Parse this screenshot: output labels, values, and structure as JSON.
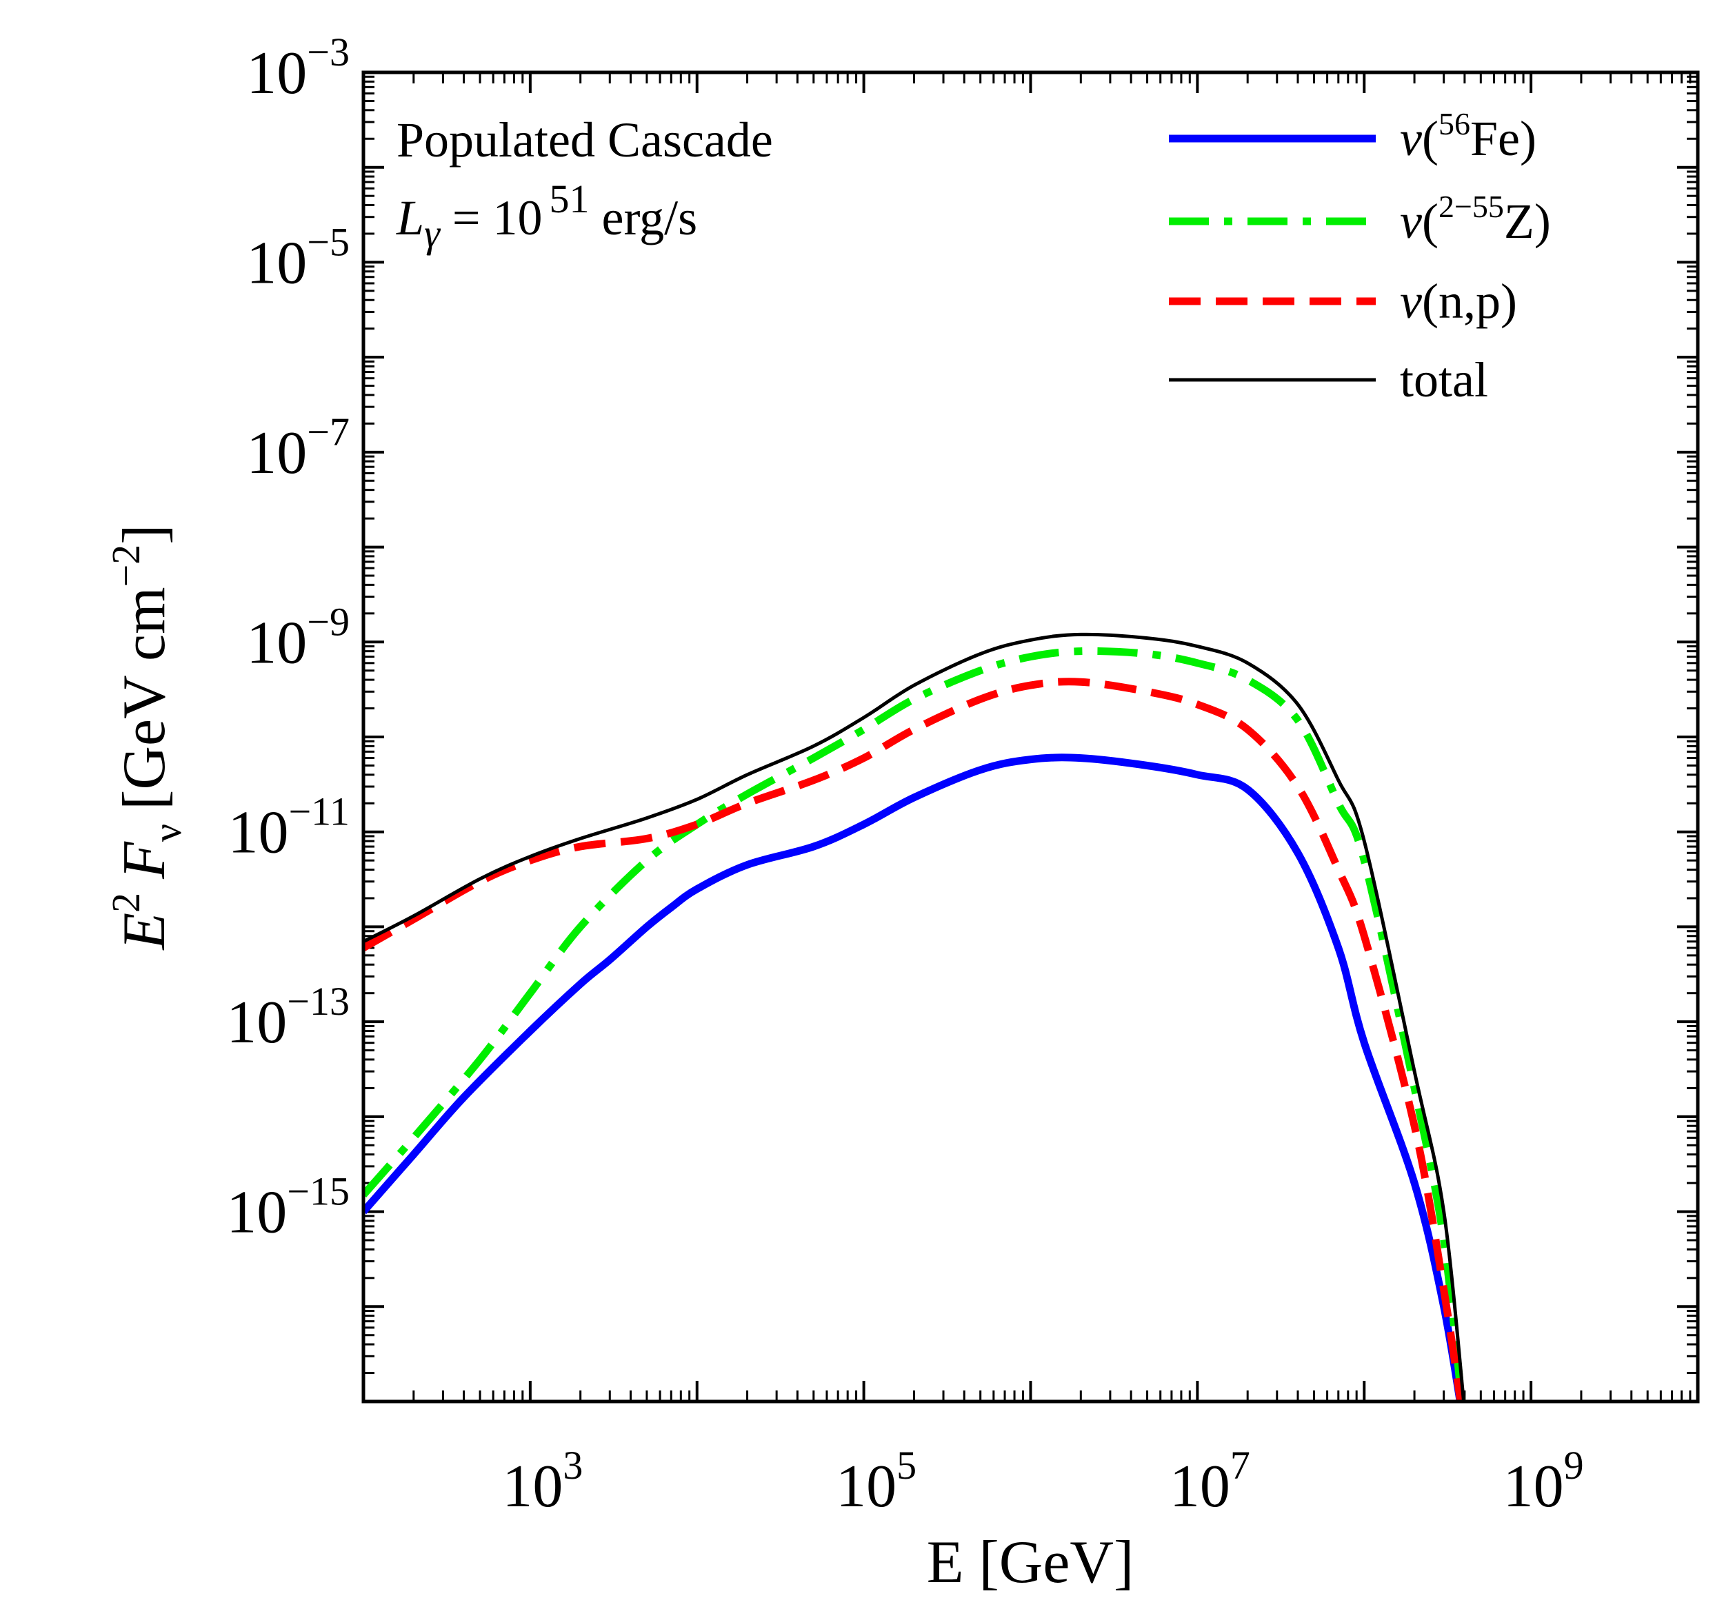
{
  "chart_data": {
    "type": "line",
    "xscale": "log",
    "yscale": "log",
    "xlim": [
      100,
      10000000000
    ],
    "ylim": [
      1e-17,
      0.001
    ],
    "xlabel": "E [GeV]",
    "ylabel": {
      "base": "E",
      "base_sup": "2",
      "flux": "F",
      "flux_sub": "ν",
      "unit_open": "[GeV cm",
      "unit_sup": "−2",
      "unit_close": "]"
    },
    "x_ticks": [
      {
        "exp": 3,
        "base": "10",
        "sup": "3"
      },
      {
        "exp": 5,
        "base": "10",
        "sup": "5"
      },
      {
        "exp": 7,
        "base": "10",
        "sup": "7"
      },
      {
        "exp": 9,
        "base": "10",
        "sup": "9"
      }
    ],
    "y_ticks": [
      {
        "exp": -3,
        "base": "10",
        "sup": "−3"
      },
      {
        "exp": -5,
        "base": "10",
        "sup": "−5"
      },
      {
        "exp": -7,
        "base": "10",
        "sup": "−7"
      },
      {
        "exp": -9,
        "base": "10",
        "sup": "−9"
      },
      {
        "exp": -11,
        "base": "10",
        "sup": "−11"
      },
      {
        "exp": -13,
        "base": "10",
        "sup": "−13"
      },
      {
        "exp": -15,
        "base": "10",
        "sup": "−15"
      }
    ],
    "annotation": {
      "line1": "Populated Cascade",
      "line2_sym": "L",
      "line2_sub": "γ",
      "line2_eq": " = 10",
      "line2_sup": "51",
      "line2_unit": " erg/s"
    },
    "legend_position": "top-right",
    "series": [
      {
        "name": "ν(56Fe)",
        "label_nu": "ν",
        "label_open": "(",
        "label_sup": "56",
        "label_rest": "Fe)",
        "color": "#0000ff",
        "style": "solid",
        "weight": "thick",
        "x": [
          100,
          200,
          400,
          1000,
          2000,
          3000,
          5000,
          7000,
          10000,
          20000,
          50000,
          100000,
          200000,
          500000,
          1000000,
          2000000,
          5000000,
          10000000,
          20000000,
          40000000,
          70000000,
          100000000,
          200000000,
          300000000,
          400000000
        ],
        "y": [
          1e-15,
          4e-15,
          1.6e-14,
          8e-14,
          2.5e-13,
          4.5e-13,
          1e-12,
          1.6e-12,
          2.5e-12,
          4.5e-12,
          7e-12,
          1.2e-11,
          2.3e-11,
          4.5e-11,
          5.8e-11,
          6e-11,
          5e-11,
          4e-11,
          2.8e-11,
          6e-12,
          6e-13,
          6e-14,
          2e-15,
          1e-16,
          5e-18
        ]
      },
      {
        "name": "ν(2−55Z)",
        "label_nu": "ν",
        "label_open": "(",
        "label_sup": "2−55",
        "label_rest": "Z)",
        "color": "#00ee00",
        "style": "dashdot",
        "weight": "thick",
        "x": [
          100,
          200,
          500,
          1000,
          2000,
          5000,
          10000,
          20000,
          50000,
          100000,
          200000,
          500000,
          1000000,
          2000000,
          5000000,
          10000000,
          20000000,
          40000000,
          70000000,
          100000000,
          200000000,
          300000000,
          400000000
        ],
        "y": [
          1.5e-15,
          6e-15,
          4e-14,
          2e-13,
          1e-12,
          5e-12,
          1.2e-11,
          2.5e-11,
          6e-11,
          1.2e-10,
          2.5e-10,
          5e-10,
          7e-10,
          8e-10,
          7.5e-10,
          6e-10,
          4e-10,
          1.5e-10,
          2e-11,
          5e-12,
          2e-14,
          5e-16,
          5e-18
        ]
      },
      {
        "name": "ν(n,p)",
        "label_nu": "ν",
        "label_open": "(n,p)",
        "label_sup": "",
        "label_rest": "",
        "color": "#ff0000",
        "style": "dashed",
        "weight": "thick",
        "x": [
          100,
          200,
          500,
          1000,
          2000,
          5000,
          10000,
          20000,
          50000,
          100000,
          200000,
          500000,
          1000000,
          2000000,
          5000000,
          10000000,
          20000000,
          40000000,
          70000000,
          100000000,
          200000000,
          300000000,
          400000000
        ],
        "y": [
          6e-13,
          1.2e-12,
          3e-12,
          5e-12,
          7e-12,
          8.5e-12,
          1.2e-11,
          2e-11,
          3.5e-11,
          6e-11,
          1.2e-10,
          2.5e-10,
          3.5e-10,
          3.8e-10,
          3e-10,
          2.2e-10,
          1.2e-10,
          3e-11,
          4e-12,
          8e-13,
          8e-15,
          1.5e-16,
          5e-18
        ]
      },
      {
        "name": "total",
        "label_nu": "",
        "label_open": "total",
        "label_sup": "",
        "label_rest": "",
        "color": "#000000",
        "style": "solid",
        "weight": "thin",
        "x": [
          100,
          200,
          500,
          1000,
          2000,
          5000,
          10000,
          20000,
          50000,
          100000,
          200000,
          500000,
          1000000,
          2000000,
          5000000,
          10000000,
          20000000,
          40000000,
          70000000,
          100000000,
          200000000,
          300000000,
          400000000
        ],
        "y": [
          7e-13,
          1.3e-12,
          3.2e-12,
          5.5e-12,
          8.5e-12,
          1.4e-11,
          2.2e-11,
          4e-11,
          8e-11,
          1.6e-10,
          3.5e-10,
          7.5e-10,
          1.05e-09,
          1.2e-09,
          1.1e-09,
          9e-10,
          6e-10,
          2.2e-10,
          3.5e-11,
          8e-12,
          3e-14,
          1e-15,
          8e-18
        ]
      }
    ]
  }
}
